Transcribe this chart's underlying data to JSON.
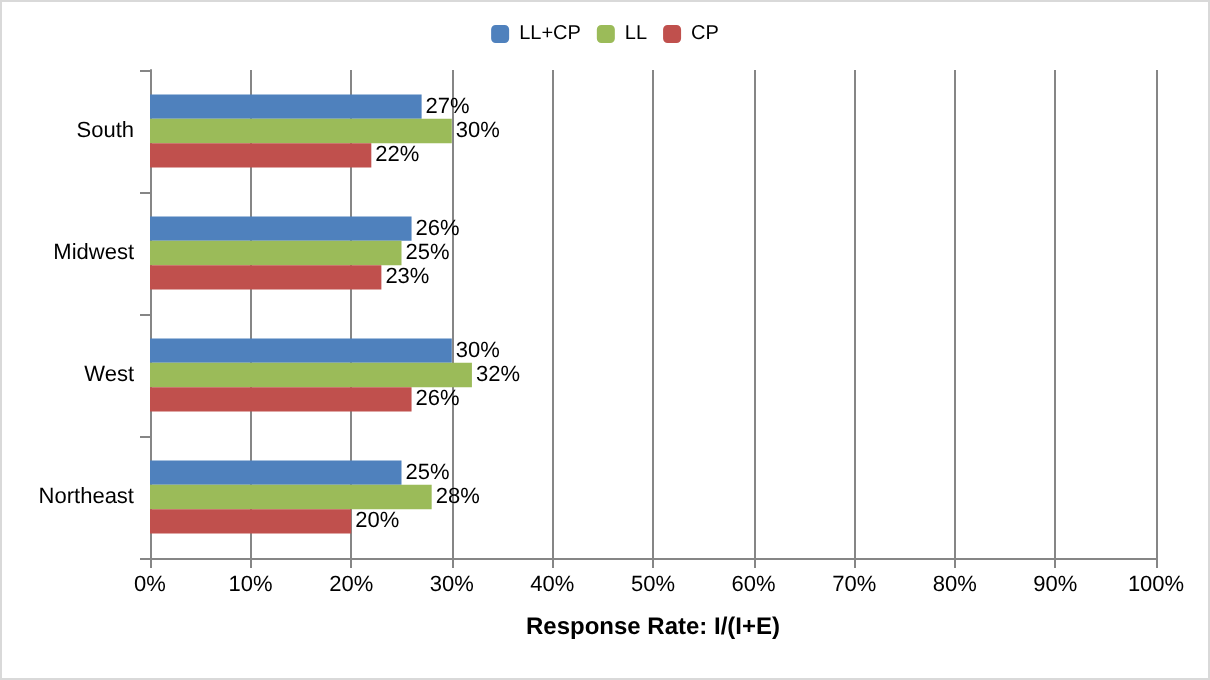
{
  "chart_data": {
    "type": "bar",
    "orientation": "horizontal",
    "xlabel": "Response Rate: I/(I+E)",
    "categories": [
      "South",
      "Midwest",
      "West",
      "Northeast"
    ],
    "series": [
      {
        "name": "LL+CP",
        "color": "#4f81bd",
        "values": [
          27,
          26,
          30,
          25
        ],
        "value_labels": [
          "27%",
          "26%",
          "30%",
          "25%"
        ]
      },
      {
        "name": "LL",
        "color": "#9bbb59",
        "values": [
          30,
          25,
          32,
          28
        ],
        "value_labels": [
          "30%",
          "25%",
          "32%",
          "28%"
        ]
      },
      {
        "name": "CP",
        "color": "#c0504d",
        "values": [
          22,
          23,
          26,
          20
        ],
        "value_labels": [
          "22%",
          "23%",
          "26%",
          "20%"
        ]
      }
    ],
    "xlim": [
      0,
      100
    ],
    "xticks": [
      {
        "value": 0,
        "label": "0%"
      },
      {
        "value": 10,
        "label": "10%"
      },
      {
        "value": 20,
        "label": "20%"
      },
      {
        "value": 30,
        "label": "30%"
      },
      {
        "value": 40,
        "label": "40%"
      },
      {
        "value": 50,
        "label": "50%"
      },
      {
        "value": 60,
        "label": "60%"
      },
      {
        "value": 70,
        "label": "70%"
      },
      {
        "value": 80,
        "label": "80%"
      },
      {
        "value": 90,
        "label": "90%"
      },
      {
        "value": 100,
        "label": "100%"
      }
    ],
    "grid": "x",
    "legend": "top"
  }
}
